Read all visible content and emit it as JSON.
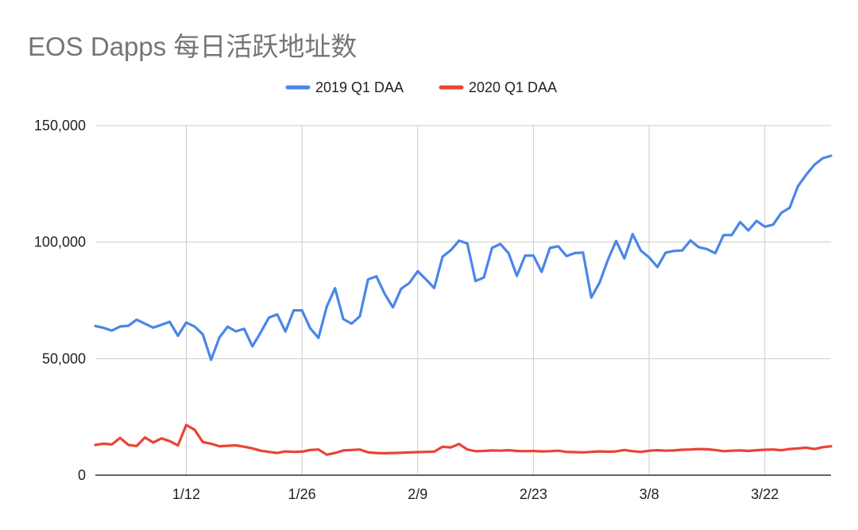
{
  "chart_data": {
    "type": "line",
    "title": "EOS Dapps 每日活跃地址数",
    "xlabel": "",
    "ylabel": "",
    "ylim": [
      0,
      150000
    ],
    "y_ticks": [
      {
        "value": 0,
        "label": "0"
      },
      {
        "value": 50000,
        "label": "50,000"
      },
      {
        "value": 100000,
        "label": "100,000"
      },
      {
        "value": 150000,
        "label": "150,000"
      }
    ],
    "x_ticks": [
      {
        "day": 12,
        "label": "1/12"
      },
      {
        "day": 26,
        "label": "1/26"
      },
      {
        "day": 40,
        "label": "2/9"
      },
      {
        "day": 54,
        "label": "2/23"
      },
      {
        "day": 68,
        "label": "3/8"
      },
      {
        "day": 82,
        "label": "3/22"
      }
    ],
    "xlim": [
      1,
      90
    ],
    "grid": true,
    "legend_position": "top-center",
    "series": [
      {
        "name": "2019 Q1 DAA",
        "color": "#4a86e8",
        "values": [
          64000,
          63200,
          62000,
          63800,
          64100,
          66700,
          65000,
          63300,
          64500,
          65800,
          59800,
          65500,
          63800,
          60400,
          49500,
          59000,
          63700,
          61700,
          62800,
          55300,
          61200,
          67600,
          69000,
          61600,
          70700,
          70700,
          63000,
          58900,
          72300,
          80200,
          67000,
          65000,
          68100,
          84000,
          85300,
          77800,
          72000,
          80000,
          82500,
          87500,
          84000,
          80300,
          93700,
          96500,
          100600,
          99400,
          83300,
          84800,
          97500,
          99200,
          95200,
          85500,
          94200,
          94200,
          87200,
          97500,
          98200,
          94000,
          95300,
          95500,
          76200,
          82600,
          92300,
          100500,
          93000,
          103400,
          96300,
          93400,
          89300,
          95500,
          96200,
          96400,
          100700,
          97800,
          97000,
          95200,
          103000,
          103000,
          108600,
          105000,
          109100,
          106600,
          107500,
          112600,
          114700,
          124000,
          128900,
          133200,
          136000,
          137000
        ],
        "x_start_day": 1
      },
      {
        "name": "2020 Q1 DAA",
        "color": "#ea4335",
        "values": [
          13000,
          13500,
          13200,
          16000,
          13000,
          12500,
          16200,
          14000,
          15800,
          14600,
          12800,
          21500,
          19500,
          14200,
          13500,
          12400,
          12600,
          12800,
          12200,
          11500,
          10500,
          10000,
          9500,
          10200,
          10000,
          10100,
          10800,
          11000,
          8800,
          9500,
          10600,
          10800,
          11000,
          9800,
          9500,
          9400,
          9500,
          9600,
          9800,
          9900,
          10000,
          10100,
          12200,
          11900,
          13400,
          11000,
          10300,
          10400,
          10600,
          10500,
          10700,
          10400,
          10300,
          10400,
          10200,
          10300,
          10500,
          10000,
          9900,
          9800,
          10000,
          10200,
          10100,
          10200,
          10800,
          10300,
          10000,
          10500,
          10700,
          10500,
          10600,
          10900,
          11000,
          11200,
          11100,
          10800,
          10300,
          10500,
          10600,
          10400,
          10700,
          10900,
          11000,
          10700,
          11200,
          11500,
          11800,
          11200,
          12000,
          12400
        ],
        "x_start_day": 1
      }
    ]
  }
}
